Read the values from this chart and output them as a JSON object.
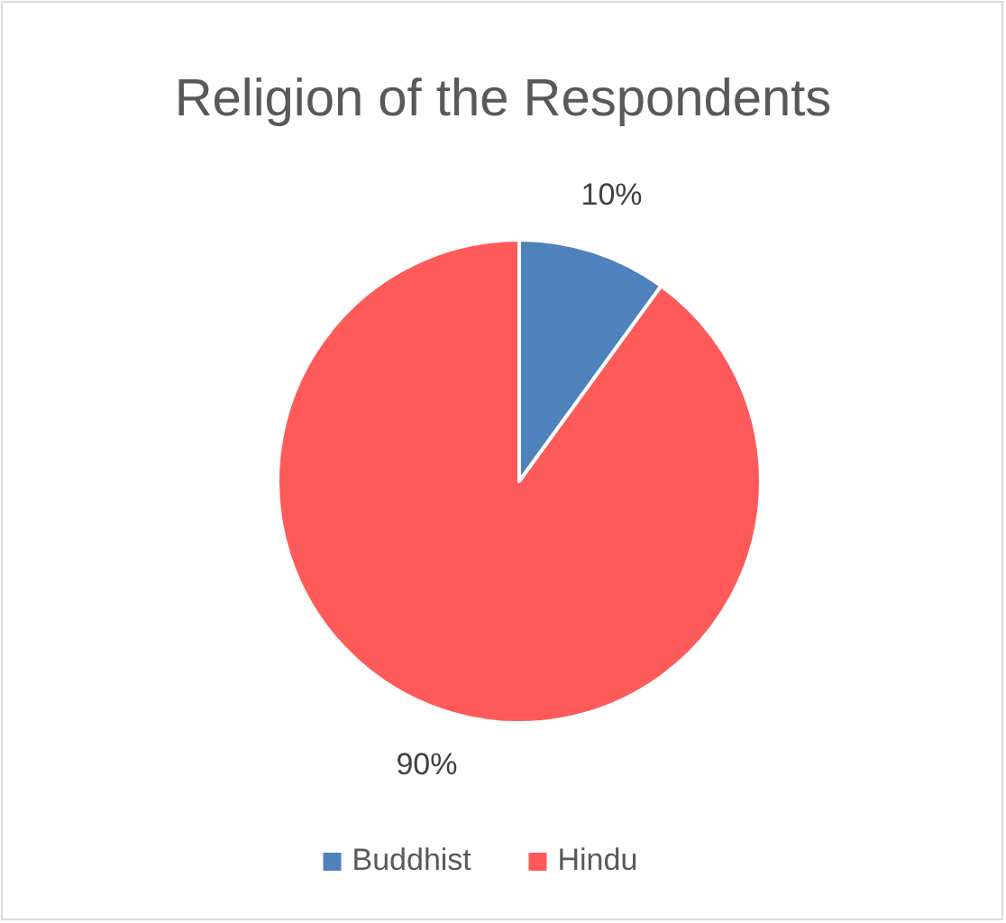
{
  "chart_data": {
    "type": "pie",
    "title": "Religion of the Respondents",
    "categories": [
      "Buddhist",
      "Hindu"
    ],
    "values": [
      10,
      90
    ],
    "colors": [
      "#4f81bd",
      "#ff5a5a"
    ],
    "value_labels": [
      "10%",
      "90%"
    ],
    "legend": "bottom"
  }
}
